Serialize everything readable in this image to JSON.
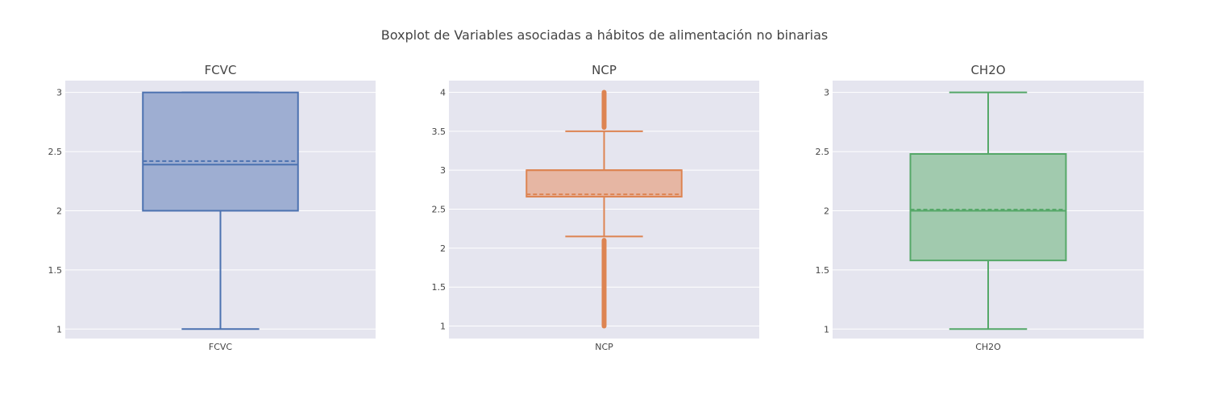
{
  "title": "Boxplot de Variables asociadas a hábitos de alimentación no binarias",
  "chart_data": [
    {
      "type": "box",
      "title": "FCVC",
      "category": "FCVC",
      "color": "#4c72b0",
      "fill": "#9aabd0",
      "ylim": [
        0.92,
        3.1
      ],
      "yticks": [
        "1",
        "1.5",
        "2",
        "2.5",
        "3"
      ],
      "stats": {
        "min": 1,
        "q1": 2,
        "median": 2.39,
        "mean": 2.42,
        "q3": 3,
        "max": 3
      },
      "outliers": []
    },
    {
      "type": "box",
      "title": "NCP",
      "category": "NCP",
      "color": "#dd8452",
      "fill": "#e6b39e",
      "ylim": [
        0.84,
        4.15
      ],
      "yticks": [
        "1",
        "1.5",
        "2",
        "2.5",
        "3",
        "3.5",
        "4"
      ],
      "stats": {
        "min": 2.15,
        "q1": 2.66,
        "median": 3,
        "mean": 2.69,
        "q3": 3,
        "max": 3.5
      },
      "outliers": [
        1,
        1.1,
        1.2,
        1.3,
        1.4,
        1.5,
        1.6,
        1.7,
        1.8,
        1.9,
        2,
        2.05,
        2.1,
        3.55,
        3.6,
        3.7,
        3.8,
        3.9,
        3.95,
        4
      ]
    },
    {
      "type": "box",
      "title": "CH2O",
      "category": "CH2O",
      "color": "#55a868",
      "fill": "#9dc8aa",
      "ylim": [
        0.92,
        3.1
      ],
      "yticks": [
        "1",
        "1.5",
        "2",
        "2.5",
        "3"
      ],
      "stats": {
        "min": 1,
        "q1": 1.58,
        "median": 2,
        "mean": 2.01,
        "q3": 2.48,
        "max": 3
      },
      "outliers": []
    }
  ]
}
